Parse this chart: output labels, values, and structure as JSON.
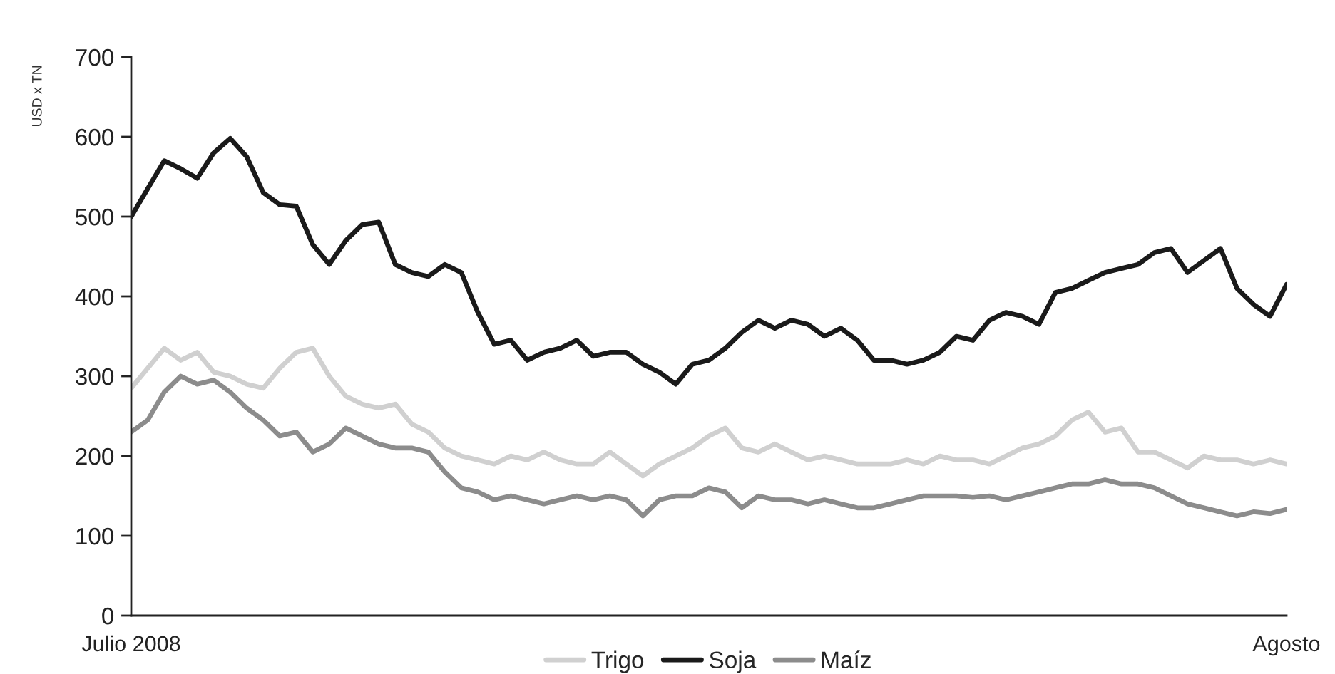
{
  "chart_data": {
    "type": "line",
    "ylabel": "USD x TN",
    "categories": [
      "Julio 2008",
      null,
      null,
      null,
      null,
      null,
      null,
      null,
      null,
      null,
      null,
      null,
      null,
      null,
      null,
      null,
      null,
      null,
      null,
      null,
      null,
      null,
      null,
      null,
      null,
      null,
      null,
      null,
      null,
      null,
      null,
      null,
      null,
      null,
      null,
      null,
      null,
      null,
      null,
      null,
      null,
      null,
      null,
      null,
      null,
      null,
      null,
      null,
      null,
      null,
      null,
      null,
      null,
      null,
      null,
      null,
      null,
      null,
      null,
      null,
      null,
      null,
      null,
      null,
      null,
      null,
      null,
      null,
      null,
      null,
      "Agosto"
    ],
    "series": [
      {
        "name": "Trigo",
        "color": "#d0d0d0",
        "values": [
          285,
          310,
          335,
          320,
          330,
          305,
          300,
          290,
          285,
          310,
          330,
          335,
          300,
          275,
          265,
          260,
          265,
          240,
          230,
          210,
          200,
          195,
          190,
          200,
          195,
          205,
          195,
          190,
          190,
          205,
          190,
          175,
          190,
          200,
          210,
          225,
          235,
          210,
          205,
          215,
          205,
          195,
          200,
          195,
          190,
          190,
          190,
          195,
          190,
          200,
          195,
          195,
          190,
          200,
          210,
          215,
          225,
          245,
          255,
          230,
          235,
          205,
          205,
          195,
          185,
          200,
          195,
          195,
          190,
          195,
          190
        ]
      },
      {
        "name": "Soja",
        "color": "#1a1a1a",
        "values": [
          500,
          535,
          570,
          560,
          548,
          580,
          598,
          575,
          530,
          515,
          513,
          465,
          440,
          470,
          490,
          493,
          440,
          430,
          425,
          440,
          430,
          380,
          340,
          345,
          320,
          330,
          335,
          345,
          325,
          330,
          330,
          315,
          305,
          290,
          315,
          320,
          335,
          355,
          370,
          360,
          370,
          365,
          350,
          360,
          345,
          320,
          320,
          315,
          320,
          330,
          350,
          345,
          370,
          380,
          375,
          365,
          405,
          410,
          420,
          430,
          435,
          440,
          455,
          460,
          430,
          445,
          460,
          410,
          390,
          375,
          415
        ]
      },
      {
        "name": "Maíz",
        "color": "#8c8c8c",
        "values": [
          230,
          245,
          280,
          300,
          290,
          295,
          280,
          260,
          245,
          225,
          230,
          205,
          215,
          235,
          225,
          215,
          210,
          210,
          205,
          180,
          160,
          155,
          145,
          150,
          145,
          140,
          145,
          150,
          145,
          150,
          145,
          125,
          145,
          150,
          150,
          160,
          155,
          135,
          150,
          145,
          145,
          140,
          145,
          140,
          135,
          135,
          140,
          145,
          150,
          150,
          150,
          148,
          150,
          145,
          150,
          155,
          160,
          165,
          165,
          170,
          165,
          165,
          160,
          150,
          140,
          135,
          130,
          125,
          130,
          128,
          133
        ]
      }
    ],
    "ylim": [
      0,
      700
    ],
    "yticks": [
      0,
      100,
      200,
      300,
      400,
      500,
      600,
      700
    ],
    "legend": "bottom",
    "grid": false
  }
}
